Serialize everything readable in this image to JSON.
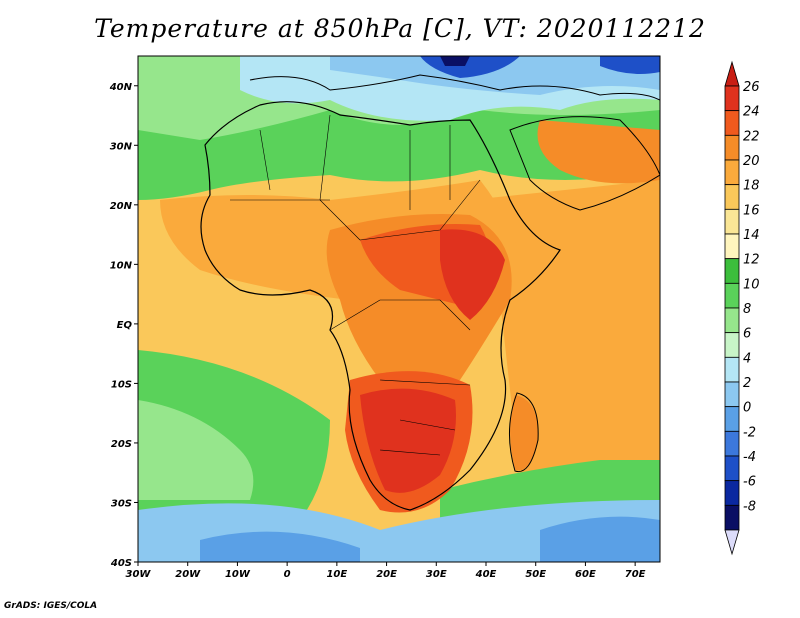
{
  "title": "Temperature at 850hPa [C], VT: 2020112212",
  "credit": "GrADS: IGES/COLA",
  "map": {
    "lon_range": [
      -30,
      75
    ],
    "lat_range": [
      -40,
      45
    ],
    "x_ticks": [
      {
        "lon": -30,
        "label": "30W"
      },
      {
        "lon": -20,
        "label": "20W"
      },
      {
        "lon": -10,
        "label": "10W"
      },
      {
        "lon": 0,
        "label": "0"
      },
      {
        "lon": 10,
        "label": "10E"
      },
      {
        "lon": 20,
        "label": "20E"
      },
      {
        "lon": 30,
        "label": "30E"
      },
      {
        "lon": 40,
        "label": "40E"
      },
      {
        "lon": 50,
        "label": "50E"
      },
      {
        "lon": 60,
        "label": "60E"
      },
      {
        "lon": 70,
        "label": "70E"
      }
    ],
    "y_ticks": [
      {
        "lat": 40,
        "label": "40N"
      },
      {
        "lat": 30,
        "label": "30N"
      },
      {
        "lat": 20,
        "label": "20N"
      },
      {
        "lat": 10,
        "label": "10N"
      },
      {
        "lat": 0,
        "label": "EQ"
      },
      {
        "lat": -10,
        "label": "10S"
      },
      {
        "lat": -20,
        "label": "20S"
      },
      {
        "lat": -30,
        "label": "30S"
      },
      {
        "lat": -40,
        "label": "40S"
      }
    ]
  },
  "colorbar": {
    "labels": [
      "26",
      "24",
      "22",
      "20",
      "18",
      "16",
      "14",
      "12",
      "10",
      "8",
      "6",
      "4",
      "2",
      "0",
      "-2",
      "-4",
      "-6",
      "-8"
    ],
    "colors": [
      "#e0321e",
      "#f05a1e",
      "#f58c28",
      "#faaa3c",
      "#fac85a",
      "#fae696",
      "#fff5be",
      "#3cbe3c",
      "#5ad25a",
      "#96e68c",
      "#c8f5c8",
      "#b4e6f5",
      "#8cc8f0",
      "#5aa0e6",
      "#3c78dc",
      "#1e50c8",
      "#0a28a0",
      "#0a0f64"
    ],
    "top_arrow_color": "#c81e14",
    "bottom_arrow_color": "#dcdcfa"
  },
  "regions": [
    {
      "name": "ocean-south-cool",
      "color": "#5ad25a"
    },
    {
      "name": "ocean-south-band",
      "color": "#96e68c"
    },
    {
      "name": "southern-ocean-blue",
      "color": "#8cc8f0"
    },
    {
      "name": "southern-ocean-deep",
      "color": "#5aa0e6"
    },
    {
      "name": "atlantic-warm",
      "color": "#fac85a"
    },
    {
      "name": "indian-ocean-warm",
      "color": "#faaa3c"
    },
    {
      "name": "sahara-green",
      "color": "#5ad25a"
    },
    {
      "name": "mediterranean-blue",
      "color": "#b4e6f5"
    },
    {
      "name": "europe-blue",
      "color": "#8cc8f0"
    },
    {
      "name": "europe-deep",
      "color": "#1e50c8"
    },
    {
      "name": "arabia-warm",
      "color": "#f58c28"
    },
    {
      "name": "west-africa-orange",
      "color": "#faaa3c"
    },
    {
      "name": "central-africa-hot",
      "color": "#f05a1e"
    },
    {
      "name": "east-africa-hot",
      "color": "#e0321e"
    },
    {
      "name": "southern-africa-hot",
      "color": "#f05a1e"
    },
    {
      "name": "southern-africa-core",
      "color": "#e0321e"
    },
    {
      "name": "madagascar-orange",
      "color": "#f58c28"
    }
  ]
}
